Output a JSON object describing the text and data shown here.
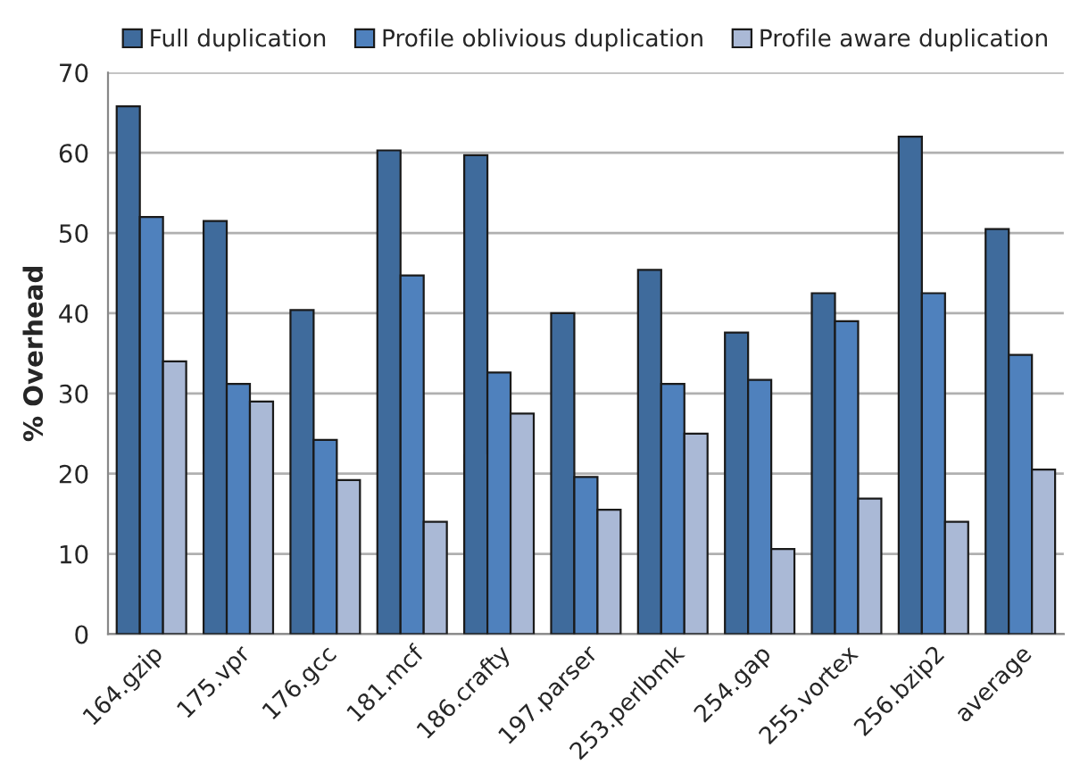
{
  "chart_data": {
    "type": "bar",
    "ylabel": "% Overhead",
    "categories": [
      "164.gzip",
      "175.vpr",
      "176.gcc",
      "181.mcf",
      "186.crafty",
      "197.parser",
      "253.perlbmk",
      "254.gap",
      "255.vortex",
      "256.bzip2",
      "average"
    ],
    "series": [
      {
        "name": "Full duplication",
        "color": "#3f6b9c",
        "values": [
          65.8,
          51.5,
          40.4,
          60.3,
          59.7,
          40.0,
          45.4,
          37.6,
          42.5,
          62.0,
          50.5
        ]
      },
      {
        "name": "Profile oblivious duplication",
        "color": "#4f81bd",
        "values": [
          52.0,
          31.2,
          24.2,
          44.7,
          32.6,
          19.6,
          31.2,
          31.7,
          39.0,
          42.5,
          34.8
        ]
      },
      {
        "name": "Profile aware duplication",
        "color": "#aab9d6",
        "values": [
          34.0,
          29.0,
          19.2,
          14.0,
          27.5,
          15.5,
          25.0,
          10.6,
          16.9,
          14.0,
          20.5
        ]
      }
    ],
    "ylim": [
      0,
      70
    ],
    "yticks": [
      0,
      10,
      20,
      30,
      40,
      50,
      60,
      70
    ],
    "grid": "y",
    "legend": "top"
  }
}
